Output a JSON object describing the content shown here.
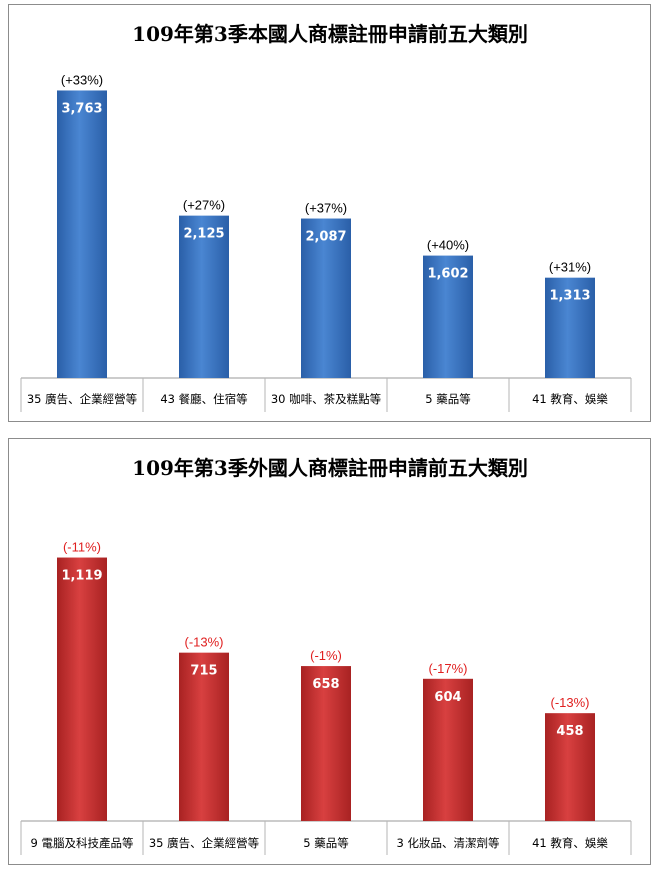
{
  "chart_data": [
    {
      "type": "bar",
      "title": "109年第3季本國人商標註冊申請前五大類別",
      "categories": [
        "35 廣告、企業經營等",
        "43 餐廳、住宿等",
        "30 咖啡、茶及糕點等",
        "5 藥品等",
        "41 教育、娛樂"
      ],
      "values": [
        3763,
        2125,
        2087,
        1602,
        1313
      ],
      "value_labels": [
        "3,763",
        "2,125",
        "2,087",
        "1,602",
        "1,313"
      ],
      "change_labels": [
        "(+33%)",
        "(+27%)",
        "(+37%)",
        "(+40%)",
        "(+31%)"
      ],
      "ylim": [
        0,
        3900
      ],
      "grid": false,
      "bar_color": "#3a76c4",
      "change_label_color": "#000000"
    },
    {
      "type": "bar",
      "title": "109年第3季外國人商標註冊申請前五大類別",
      "categories": [
        "9 電腦及科技產品等",
        "35 廣告、企業經營等",
        "5 藥品等",
        "3 化妝品、清潔劑等",
        "41 教育、娛樂"
      ],
      "values": [
        1119,
        715,
        658,
        604,
        458
      ],
      "value_labels": [
        "1,119",
        "715",
        "658",
        "604",
        "458"
      ],
      "change_labels": [
        "(-11%)",
        "(-13%)",
        "(-1%)",
        "(-17%)",
        "(-13%)"
      ],
      "ylim": [
        0,
        1185
      ],
      "grid": false,
      "bar_color": "#c83232",
      "change_label_color": "#e02020"
    }
  ]
}
